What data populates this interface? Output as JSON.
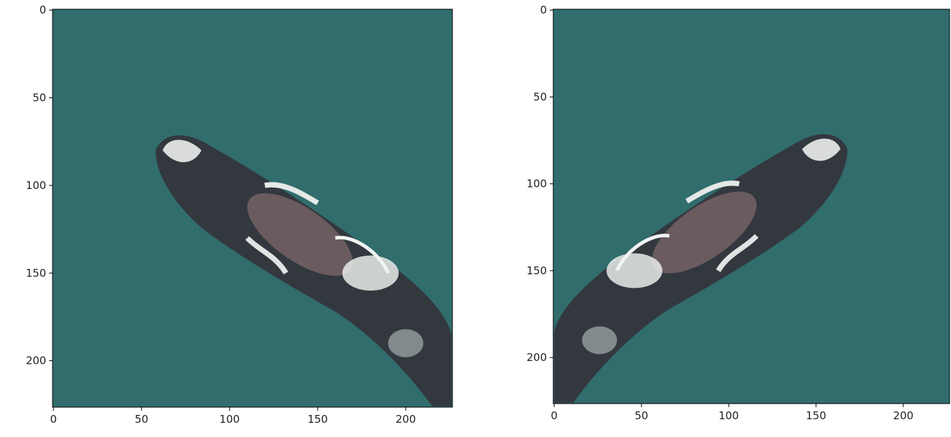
{
  "chart_data": [
    {
      "type": "image",
      "xlim": [
        -0.5,
        226.5
      ],
      "ylim": [
        226.5,
        -0.5
      ],
      "xticks": [
        0,
        50,
        100,
        150,
        200
      ],
      "yticks": [
        0,
        50,
        100,
        150,
        200
      ]
    },
    {
      "type": "image",
      "xlim": [
        -0.5,
        226.5
      ],
      "ylim": [
        226.5,
        -0.5
      ],
      "xticks": [
        0,
        50,
        100,
        150,
        200
      ],
      "yticks": [
        0,
        50,
        100,
        150,
        200
      ]
    }
  ]
}
